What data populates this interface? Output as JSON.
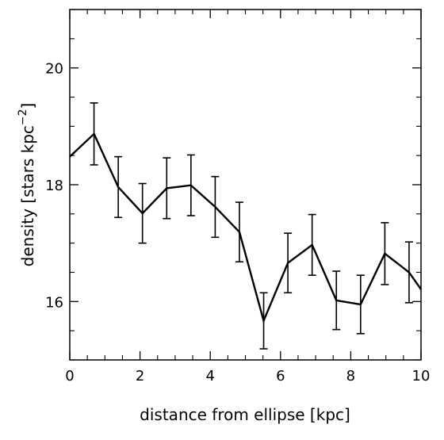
{
  "chart_data": {
    "type": "line",
    "xlabel": "distance from ellipse [kpc]",
    "ylabel_main": "density [stars kpc",
    "ylabel_sup": "−2",
    "ylabel_close": "]",
    "xlim": [
      0,
      10
    ],
    "ylim": [
      15.0,
      21.0
    ],
    "x_ticks": [
      0,
      2,
      4,
      6,
      8,
      10
    ],
    "x_tick_labels": [
      "0",
      "2",
      "4",
      "6",
      "8",
      "10"
    ],
    "y_ticks": [
      16,
      18,
      20
    ],
    "y_tick_labels": [
      "16",
      "18",
      "20"
    ],
    "grid": false,
    "series": [
      {
        "x": [
          0.0,
          0.69,
          1.38,
          2.07,
          2.76,
          3.45,
          4.14,
          4.83,
          5.52,
          6.21,
          6.9,
          7.59,
          8.28,
          8.97,
          9.66,
          10.0
        ],
        "y": [
          18.48,
          18.87,
          17.96,
          17.51,
          17.94,
          17.99,
          17.62,
          17.19,
          15.67,
          16.66,
          16.97,
          16.02,
          15.95,
          16.82,
          16.5,
          16.21
        ],
        "yerr": [
          null,
          0.53,
          0.52,
          0.51,
          0.52,
          0.52,
          0.52,
          0.51,
          0.48,
          0.51,
          0.52,
          0.5,
          0.5,
          0.53,
          0.52,
          null
        ]
      }
    ]
  }
}
